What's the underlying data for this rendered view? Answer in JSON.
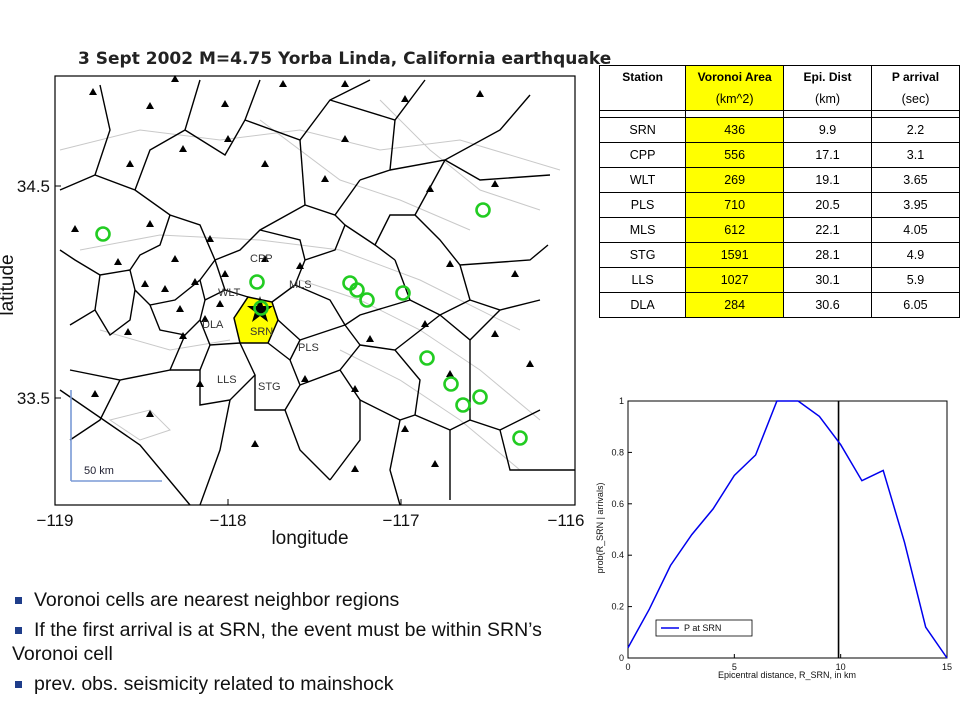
{
  "map": {
    "title": "3 Sept 2002 M=4.75 Yorba Linda, California earthquake",
    "xlabel": "longitude",
    "ylabel": "latitude",
    "xticks": [
      "−119",
      "−118",
      "−117",
      "−116"
    ],
    "yticks": [
      "34.5",
      "33.5"
    ],
    "scale_label": "50 km",
    "station_labels": [
      "CPP",
      "MLS",
      "WLT",
      "DLA",
      "SRN",
      "PLS",
      "LLS",
      "STG"
    ],
    "highlighted_cell": "SRN",
    "colors": {
      "cell": "#ffff00",
      "circles": "#22cc22",
      "lines": "#000000"
    }
  },
  "table": {
    "headers": [
      "Station",
      "Voronoi Area",
      "Epi. Dist",
      "P arrival"
    ],
    "units": [
      "",
      "(km^2)",
      "(km)",
      "(sec)"
    ],
    "highlight_column": "Voronoi Area",
    "highlight_color": "#ffff00",
    "rows": [
      [
        "SRN",
        "436",
        "9.9",
        "2.2"
      ],
      [
        "CPP",
        "556",
        "17.1",
        "3.1"
      ],
      [
        "WLT",
        "269",
        "19.1",
        "3.65"
      ],
      [
        "PLS",
        "710",
        "20.5",
        "3.95"
      ],
      [
        "MLS",
        "612",
        "22.1",
        "4.05"
      ],
      [
        "STG",
        "1591",
        "28.1",
        "4.9"
      ],
      [
        "LLS",
        "1027",
        "30.1",
        "5.9"
      ],
      [
        "DLA",
        "284",
        "30.6",
        "6.05"
      ]
    ]
  },
  "chart_data": {
    "type": "line",
    "xlabel": "Epicentral distance, R_SRN, in km",
    "ylabel": "prob(R_SRN | arrivals)",
    "xlim": [
      0,
      15
    ],
    "ylim": [
      0,
      1
    ],
    "xticks": [
      "0",
      "5",
      "10",
      "15"
    ],
    "yticks": [
      "0",
      "0.2",
      "0.4",
      "0.6",
      "0.8",
      "1"
    ],
    "vline_x": 9.9,
    "legend": {
      "label": "P at SRN",
      "placement": "bottom-left"
    },
    "color": "#0000ee",
    "series": [
      {
        "name": "P at SRN",
        "x": [
          0,
          1,
          2,
          3,
          4,
          5,
          6,
          7,
          8,
          9,
          10,
          11,
          12,
          13,
          14,
          15
        ],
        "y": [
          0.04,
          0.19,
          0.36,
          0.48,
          0.58,
          0.71,
          0.79,
          1.0,
          1.0,
          0.94,
          0.83,
          0.69,
          0.73,
          0.45,
          0.12,
          0.0
        ]
      }
    ]
  },
  "bullets": [
    "Voronoi cells are nearest neighbor regions",
    "If the first arrival is at SRN, the event must be within SRN’s Voronoi cell",
    "prev. obs. seismicity related to mainshock"
  ]
}
